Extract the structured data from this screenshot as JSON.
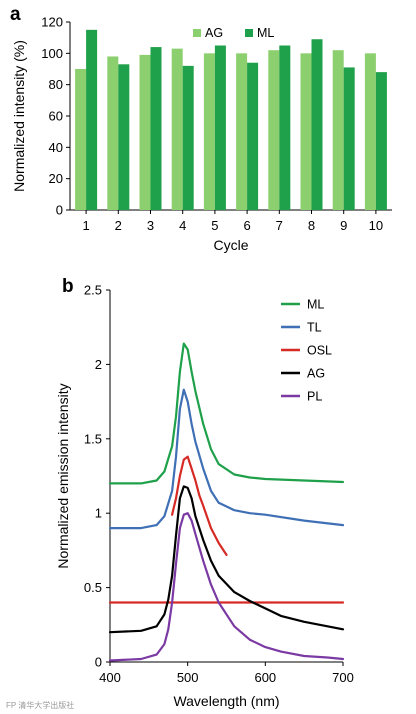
{
  "panels": {
    "a": {
      "letter": "a"
    },
    "b": {
      "letter": "b"
    }
  },
  "watermark": "FP 清华大学出版社",
  "chart_data": [
    {
      "type": "bar",
      "panel": "a",
      "categories": [
        "1",
        "2",
        "3",
        "4",
        "5",
        "6",
        "7",
        "8",
        "9",
        "10"
      ],
      "series": [
        {
          "name": "AG",
          "color": "#8ccf6e",
          "values": [
            90,
            98,
            99,
            103,
            100,
            100,
            102,
            100,
            102,
            100
          ]
        },
        {
          "name": "ML",
          "color": "#1fa04a",
          "values": [
            115,
            93,
            104,
            92,
            105,
            94,
            105,
            109,
            91,
            88
          ]
        }
      ],
      "xlabel": "Cycle",
      "ylabel": "Normalized intensity (%)",
      "ylim": [
        0,
        120
      ],
      "yticks": [
        0,
        20,
        40,
        60,
        80,
        100,
        120
      ],
      "legend_position": "top-center",
      "grid": false
    },
    {
      "type": "line",
      "panel": "b",
      "xlabel": "Wavelength (nm)",
      "ylabel": "Normalized emission intensity",
      "xlim": [
        400,
        700
      ],
      "ylim": [
        0,
        2.5
      ],
      "xticks": [
        400,
        500,
        600,
        700
      ],
      "yticks": [
        0,
        0.5,
        1,
        1.5,
        2,
        2.5
      ],
      "legend_position": "top-right",
      "grid": false,
      "series": [
        {
          "name": "ML",
          "color": "#1fa04a",
          "x": [
            400,
            440,
            460,
            470,
            480,
            485,
            490,
            495,
            500,
            505,
            510,
            520,
            530,
            540,
            560,
            580,
            600,
            650,
            700
          ],
          "y": [
            1.2,
            1.2,
            1.22,
            1.28,
            1.45,
            1.65,
            1.95,
            2.14,
            2.1,
            1.95,
            1.82,
            1.6,
            1.43,
            1.33,
            1.26,
            1.24,
            1.23,
            1.22,
            1.21
          ]
        },
        {
          "name": "TL",
          "color": "#3f6fb5",
          "x": [
            400,
            440,
            460,
            470,
            480,
            485,
            490,
            495,
            500,
            505,
            510,
            520,
            530,
            540,
            560,
            580,
            600,
            650,
            700
          ],
          "y": [
            0.9,
            0.9,
            0.92,
            0.98,
            1.15,
            1.38,
            1.7,
            1.83,
            1.75,
            1.6,
            1.48,
            1.3,
            1.15,
            1.07,
            1.02,
            1.0,
            0.99,
            0.95,
            0.92
          ]
        },
        {
          "name": "OSL",
          "color": "#d62a25",
          "x": [
            480,
            485,
            490,
            495,
            500,
            505,
            510,
            515,
            520,
            530,
            540,
            550
          ],
          "y": [
            0.99,
            1.1,
            1.25,
            1.36,
            1.38,
            1.3,
            1.22,
            1.12,
            1.05,
            0.9,
            0.8,
            0.72
          ]
        },
        {
          "name": "OSL",
          "color": "#d62a25",
          "x": [
            400,
            700
          ],
          "y": [
            0.4,
            0.4
          ]
        },
        {
          "name": "AG",
          "color": "#000000",
          "x": [
            400,
            440,
            460,
            470,
            475,
            480,
            485,
            490,
            495,
            500,
            505,
            510,
            520,
            530,
            540,
            560,
            580,
            600,
            620,
            650,
            680,
            700
          ],
          "y": [
            0.2,
            0.21,
            0.24,
            0.32,
            0.42,
            0.58,
            0.85,
            1.1,
            1.18,
            1.17,
            1.1,
            0.98,
            0.82,
            0.68,
            0.58,
            0.47,
            0.41,
            0.36,
            0.31,
            0.27,
            0.24,
            0.22
          ]
        },
        {
          "name": "PL",
          "color": "#7b3aa3",
          "x": [
            400,
            440,
            460,
            470,
            475,
            480,
            485,
            490,
            495,
            500,
            505,
            510,
            520,
            530,
            540,
            560,
            580,
            600,
            620,
            650,
            680,
            700
          ],
          "y": [
            0.01,
            0.02,
            0.05,
            0.12,
            0.22,
            0.4,
            0.66,
            0.9,
            0.99,
            1.0,
            0.95,
            0.86,
            0.68,
            0.52,
            0.4,
            0.24,
            0.15,
            0.1,
            0.07,
            0.04,
            0.03,
            0.02
          ]
        }
      ]
    }
  ]
}
